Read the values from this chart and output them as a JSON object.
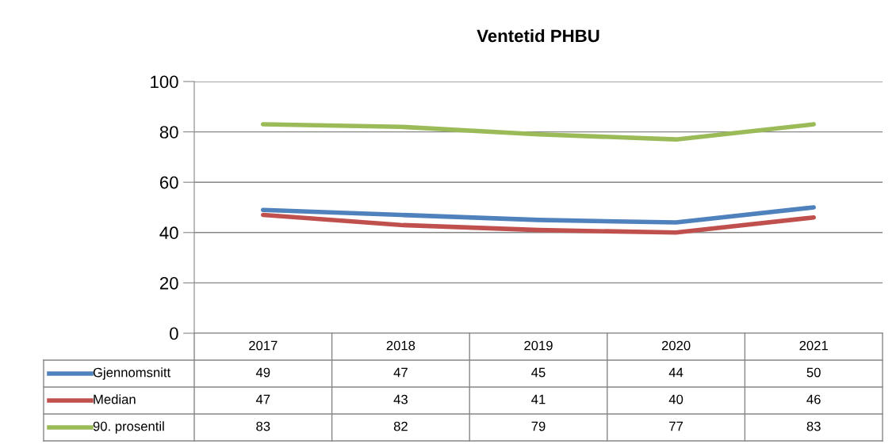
{
  "chart_data": {
    "type": "line",
    "title": "Ventetid PHBU",
    "categories": [
      "2017",
      "2018",
      "2019",
      "2020",
      "2021"
    ],
    "series": [
      {
        "name": "Gjennomsnitt",
        "color": "#4f81bd",
        "values": [
          49,
          47,
          45,
          44,
          50
        ]
      },
      {
        "name": "Median",
        "color": "#c0504d",
        "values": [
          47,
          43,
          41,
          40,
          46
        ]
      },
      {
        "name": "90. prosentil",
        "color": "#9bbb59",
        "values": [
          83,
          82,
          79,
          77,
          83
        ]
      }
    ],
    "ylim": [
      0,
      100
    ],
    "yticks": [
      0,
      20,
      40,
      60,
      80,
      100
    ],
    "grid": "y",
    "legend": "bottom",
    "data_labels": true,
    "marker": "none",
    "line_style": "solid"
  }
}
